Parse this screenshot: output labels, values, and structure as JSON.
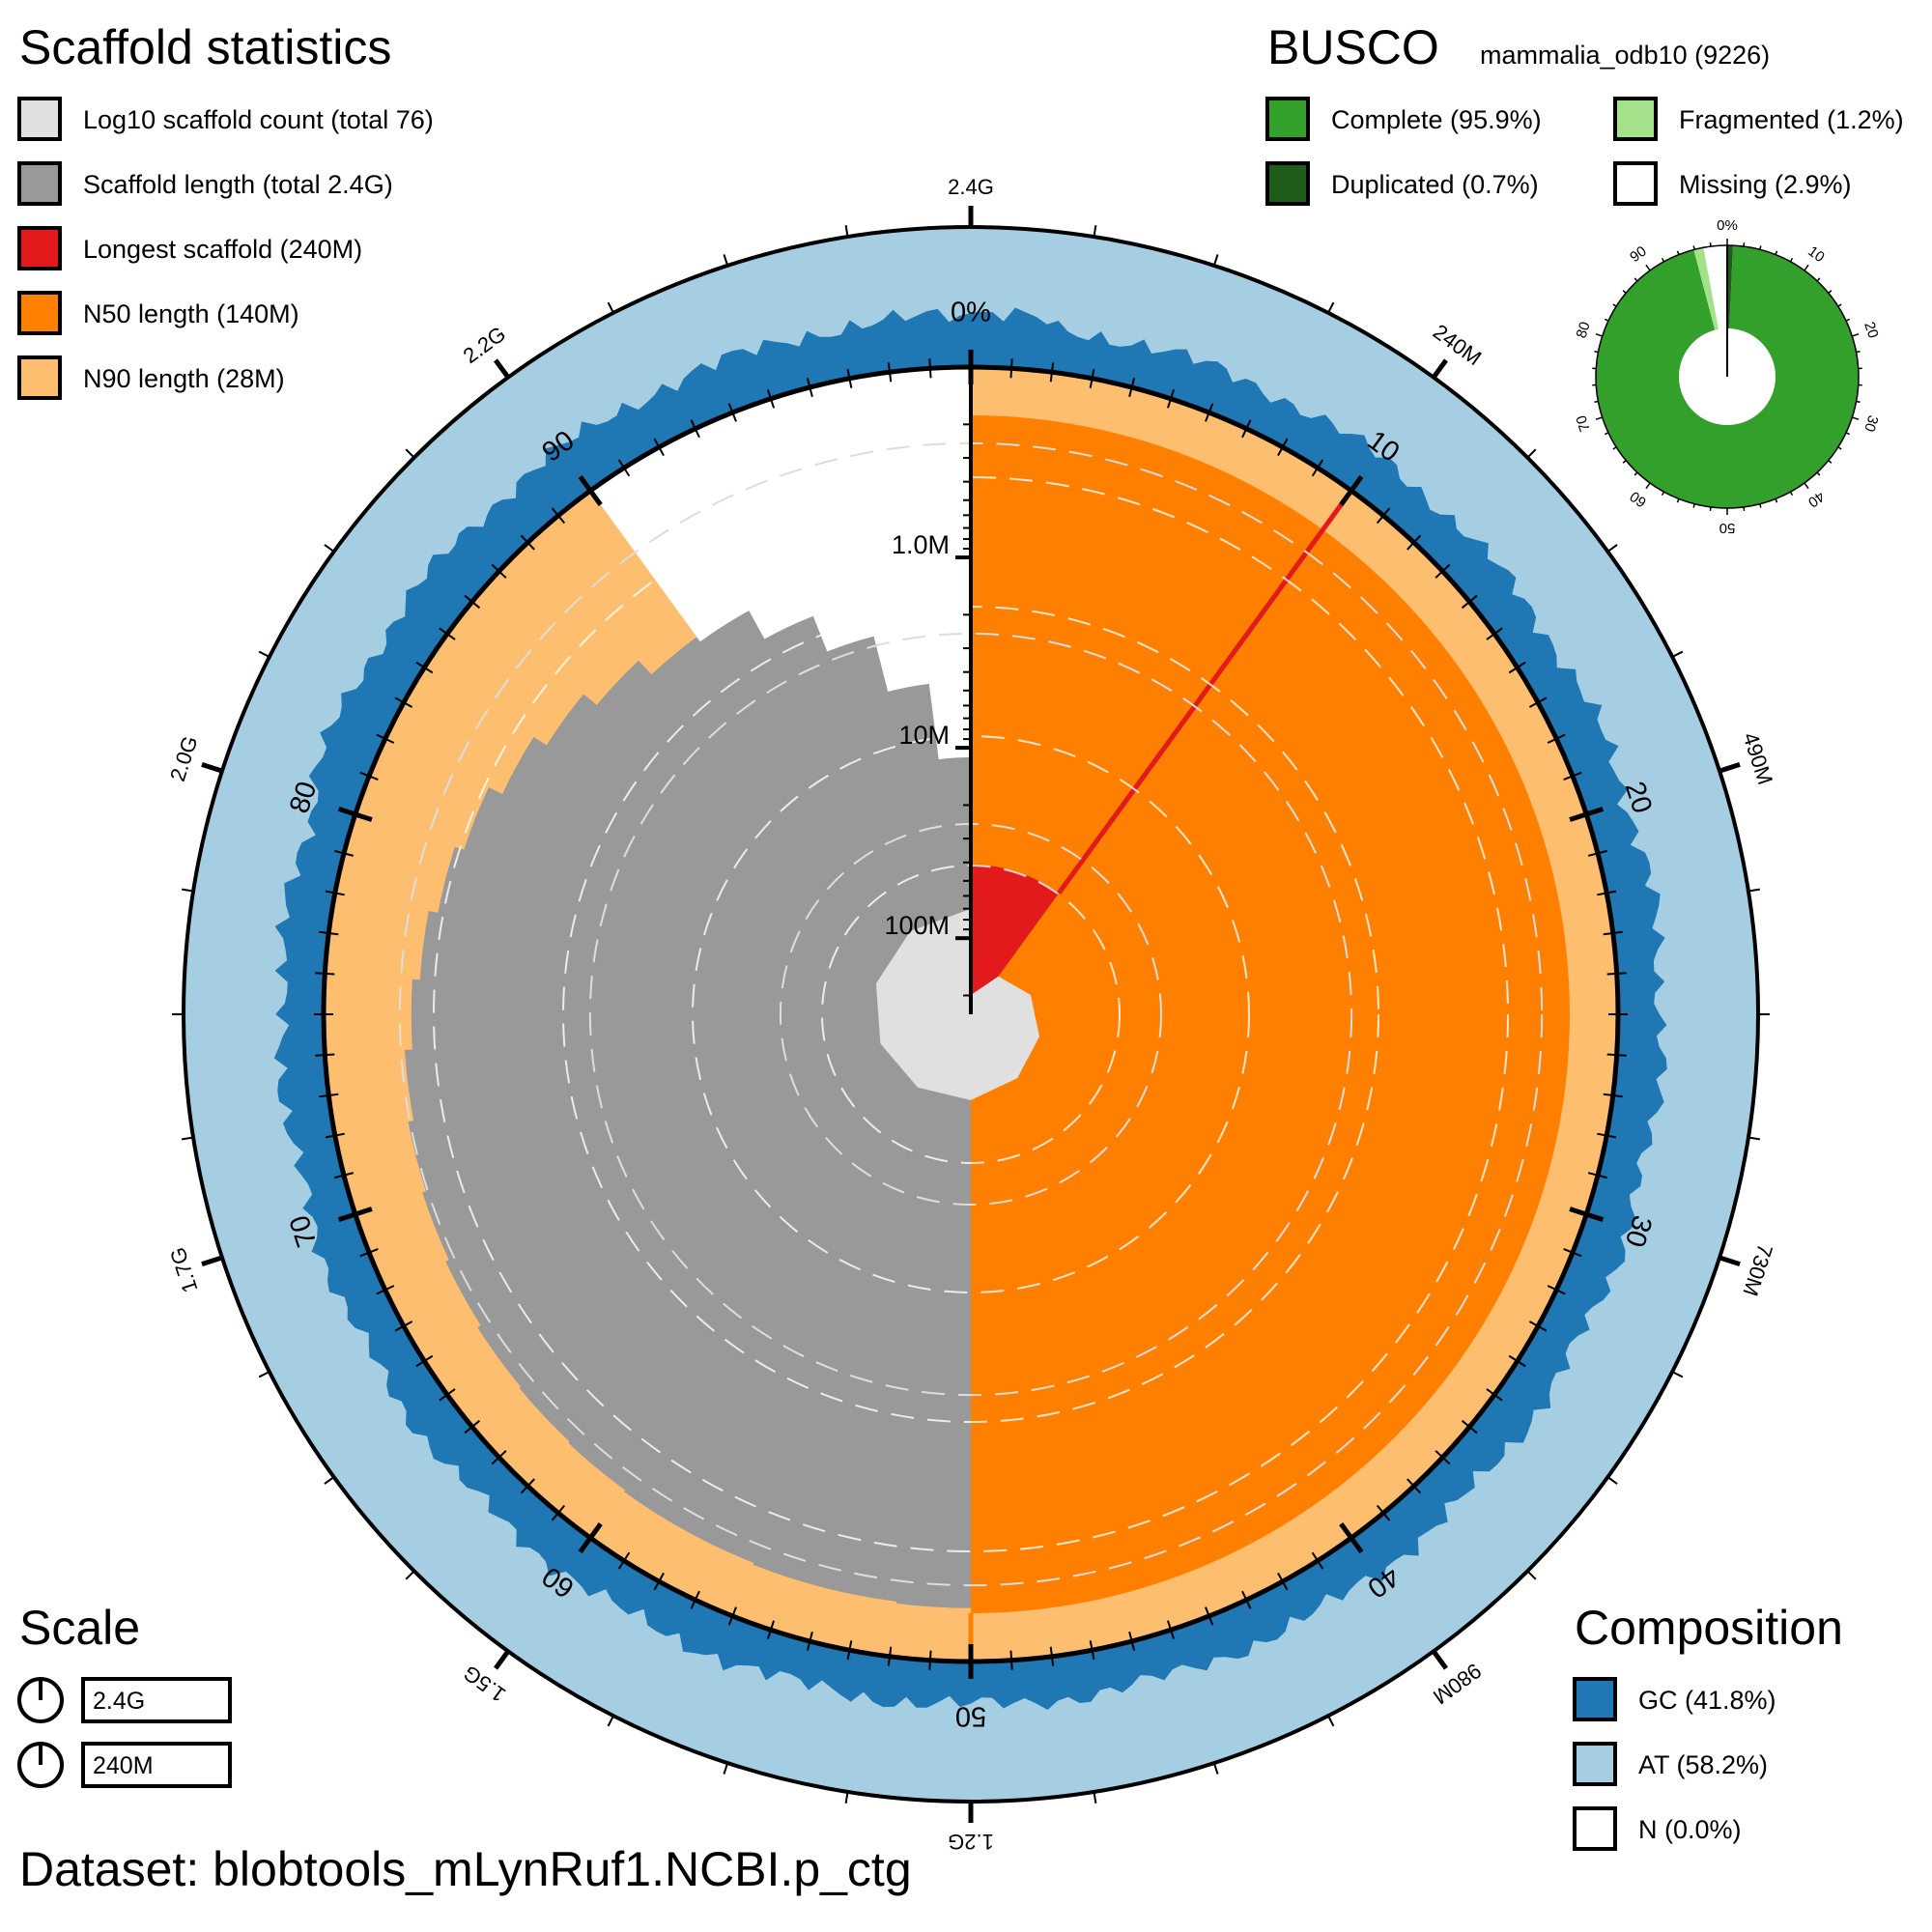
{
  "chart_data": {
    "type": "snail",
    "dataset_label": "Dataset: blobtools_mLynRuf1.NCBI.p_ctg",
    "scaffold_statistics": {
      "title": "Scaffold statistics",
      "legend": [
        {
          "label": "Log10 scaffold count (total 76)",
          "color": "#e0e0e0"
        },
        {
          "label": "Scaffold length (total 2.4G)",
          "color": "#999999"
        },
        {
          "label": "Longest scaffold (240M)",
          "color": "#e31a1c"
        },
        {
          "label": "N50 length (140M)",
          "color": "#ff7f00"
        },
        {
          "label": "N90 length (28M)",
          "color": "#fdbf6f"
        }
      ],
      "total_length": 2400000000.0,
      "longest": 240000000.0,
      "n50": 140000000.0,
      "n90": 28000000.0,
      "longest_percent": 10.0,
      "n50_percent": 50.0,
      "n90_percent": 90.0
    },
    "radial_scale": {
      "max_log10": 8.4,
      "min_log10": 5.0,
      "labels": [
        "1.0M",
        "10M",
        "100M"
      ],
      "values_log10": [
        6,
        7,
        8
      ]
    },
    "scaffold_length_profile": {
      "percent": [
        0,
        2,
        4,
        6,
        8,
        10,
        12,
        14,
        16,
        18,
        20,
        22,
        24,
        26,
        28,
        30,
        32,
        34,
        36,
        38,
        40,
        42,
        44,
        46,
        48,
        50,
        52,
        54,
        56,
        58,
        60,
        62,
        64,
        66,
        68,
        70,
        72,
        74,
        76,
        78,
        80,
        82,
        84,
        86,
        88,
        90,
        92,
        94,
        96,
        98,
        100
      ],
      "log10_length": [
        8.38,
        8.36,
        8.34,
        8.32,
        8.3,
        8.28,
        8.26,
        8.24,
        8.23,
        8.22,
        8.21,
        8.2,
        8.19,
        8.18,
        8.17,
        8.16,
        8.16,
        8.15,
        8.15,
        8.14,
        8.14,
        8.13,
        8.13,
        8.12,
        8.12,
        8.12,
        8.11,
        8.11,
        8.1,
        8.1,
        8.09,
        8.08,
        8.07,
        8.05,
        8.03,
        8.01,
        7.98,
        7.94,
        7.9,
        7.85,
        7.8,
        7.72,
        7.64,
        7.55,
        7.45,
        7.42,
        7.25,
        7.05,
        6.75,
        6.35,
        5.8
      ]
    },
    "scaffold_count_profile": {
      "percent": [
        0,
        10,
        20,
        30,
        40,
        50,
        60,
        70,
        80,
        90,
        100
      ],
      "log10_count": [
        0.0,
        0.6,
        0.95,
        1.15,
        1.3,
        1.45,
        1.55,
        1.65,
        1.75,
        1.82,
        1.88
      ]
    },
    "circumference": {
      "percent_labels": [
        "0%",
        "10",
        "20",
        "30",
        "40",
        "50",
        "60",
        "70",
        "80",
        "90"
      ],
      "percent_values": [
        0,
        10,
        20,
        30,
        40,
        50,
        60,
        70,
        80,
        90
      ],
      "length_labels": [
        "2.4G",
        "240M",
        "490M",
        "730M",
        "980M",
        "1.2G",
        "1.5G",
        "1.7G",
        "2.0G",
        "2.2G"
      ],
      "length_values_percent": [
        0,
        10,
        20,
        30,
        40,
        50,
        60,
        70,
        80,
        90
      ]
    },
    "composition": {
      "title": "Composition",
      "legend": [
        {
          "label": "GC (41.8%)",
          "color": "#1f78b4"
        },
        {
          "label": "AT (58.2%)",
          "color": "#a6cee3"
        },
        {
          "label": "N (0.0%)",
          "color": "#ffffff"
        }
      ],
      "gc_percent": 41.8,
      "at_percent": 58.2,
      "n_percent": 0.0
    },
    "busco": {
      "title": "BUSCO",
      "lineage": "mammalia_odb10 (9226)",
      "legend": [
        {
          "label": "Complete (95.9%)",
          "color": "#33a02c"
        },
        {
          "label": "Fragmented (1.2%)",
          "color": "#a3e28b"
        },
        {
          "label": "Duplicated (0.7%)",
          "color": "#1f5c1a"
        },
        {
          "label": "Missing (2.9%)",
          "color": "#ffffff"
        }
      ],
      "complete": 95.9,
      "duplicated": 0.7,
      "fragmented": 1.2,
      "missing": 2.9,
      "tick_labels": [
        "0%",
        "10",
        "20",
        "30",
        "40",
        "50",
        "60",
        "70",
        "80",
        "90"
      ],
      "tick_values": [
        0,
        10,
        20,
        30,
        40,
        50,
        60,
        70,
        80,
        90
      ]
    },
    "scale": {
      "title": "Scale",
      "items": [
        {
          "label": "2.4G"
        },
        {
          "label": "240M"
        }
      ]
    }
  }
}
